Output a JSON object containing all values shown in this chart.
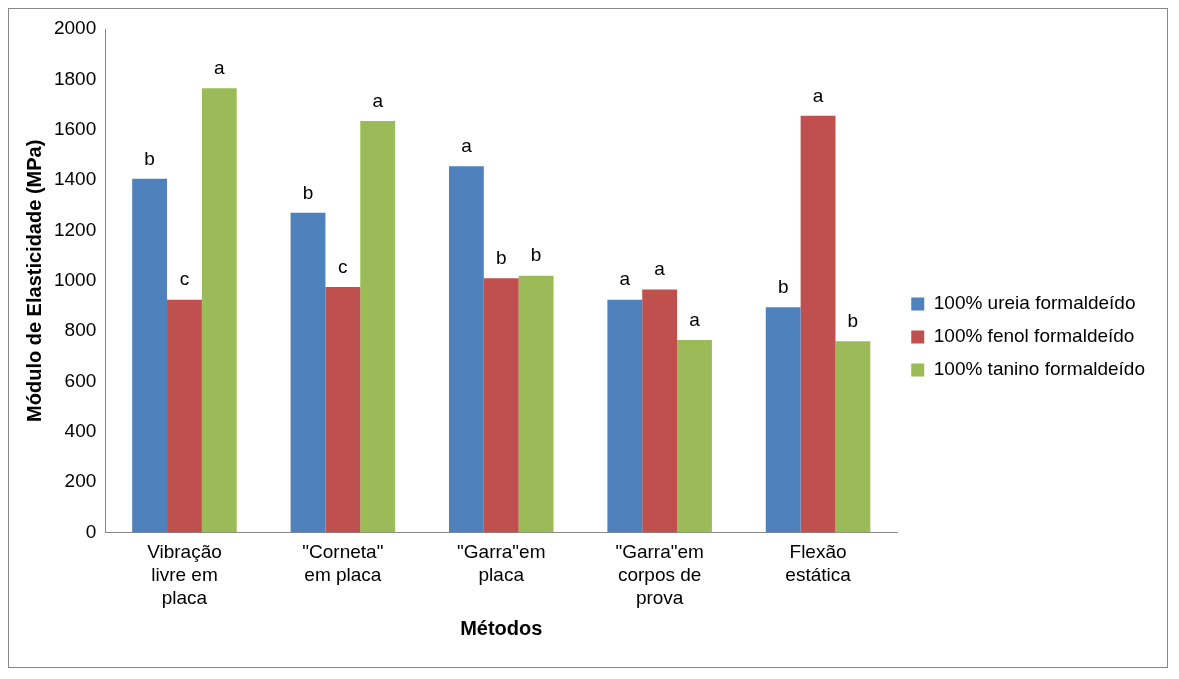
{
  "chart_data": {
    "type": "bar",
    "xlabel": "Métodos",
    "ylabel": "Módulo de Elasticidade (MPa)",
    "categories": [
      "Vibração livre em placa",
      "\"Corneta\" em placa",
      "\"Garra\"em placa",
      "\"Garra\"em corpos de prova",
      "Flexão estática"
    ],
    "series": [
      {
        "name": "100% ureia formaldeído",
        "color": "#4f81bd",
        "values": [
          1405,
          1270,
          1455,
          925,
          895
        ],
        "value_labels": [
          "b",
          "b",
          "a",
          "a",
          "b"
        ]
      },
      {
        "name": "100% fenol formaldeído",
        "color": "#c0504d",
        "values": [
          925,
          975,
          1010,
          965,
          1655
        ],
        "value_labels": [
          "c",
          "c",
          "b",
          "a",
          "a"
        ]
      },
      {
        "name": "100% tanino formaldeído",
        "color": "#9bbb59",
        "values": [
          1765,
          1635,
          1020,
          765,
          760
        ],
        "value_labels": [
          "a",
          "a",
          "b",
          "a",
          "b"
        ]
      }
    ],
    "ylim": [
      0,
      2000
    ],
    "yticks": [
      0,
      200,
      400,
      600,
      800,
      1000,
      1200,
      1400,
      1600,
      1800,
      2000
    ],
    "grid": false,
    "legend": "right"
  }
}
